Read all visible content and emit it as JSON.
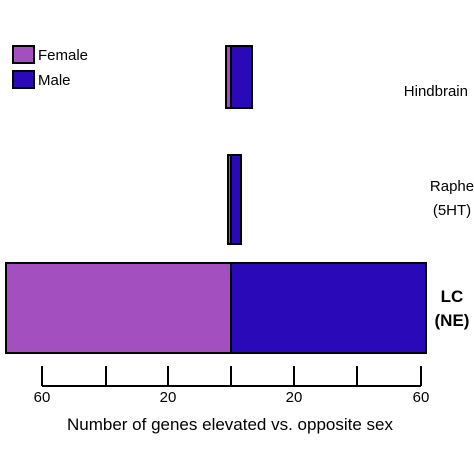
{
  "chart_data": {
    "type": "bar",
    "orientation": "horizontal",
    "layout": "diverging",
    "xlabel": "Number of genes elevated vs. opposite sex",
    "x_ticks": [
      -60,
      -40,
      -20,
      0,
      20,
      40,
      60
    ],
    "x_tick_labels": [
      "60",
      "",
      "20",
      "",
      "20",
      "",
      "60"
    ],
    "xlim": [
      -72,
      62
    ],
    "categories": [
      {
        "label": [
          "Hindbrain"
        ],
        "bold": false
      },
      {
        "label": [
          "Raphe",
          "(5HT)"
        ],
        "bold": false
      },
      {
        "label": [
          "LC",
          "(NE)"
        ],
        "bold": true
      }
    ],
    "series": [
      {
        "name": "Female",
        "color": "#a44fc0",
        "direction": "left",
        "values": [
          2,
          1,
          72
        ]
      },
      {
        "name": "Male",
        "color": "#2a0ab8",
        "direction": "right",
        "values": [
          6,
          3,
          62
        ]
      }
    ],
    "legend": {
      "position": "top-left"
    },
    "grid": false
  }
}
